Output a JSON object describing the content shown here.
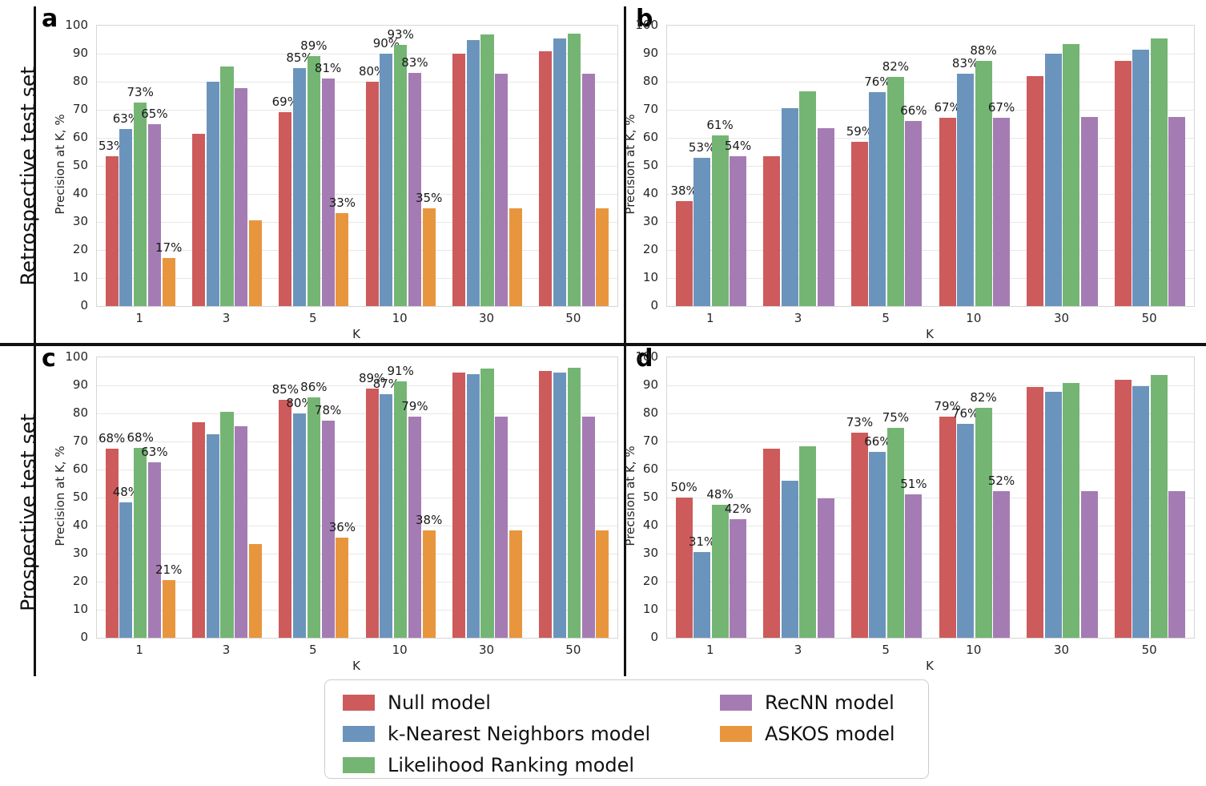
{
  "figure": {
    "row_titles": [
      "Retrospective test set",
      "Prospective test set"
    ],
    "legend": {
      "items": [
        {
          "label": "Null model",
          "color": "#cd5b5b"
        },
        {
          "label": "k-Nearest Neighbors model",
          "color": "#6b94bd"
        },
        {
          "label": "Likelihood Ranking model",
          "color": "#74b573"
        },
        {
          "label": "RecNN model",
          "color": "#a47cb3"
        },
        {
          "label": "ASKOS model",
          "color": "#e8963d"
        }
      ]
    },
    "colors": {
      "null_model": "#cd5b5b",
      "knn_model": "#6b94bd",
      "likelihood_model": "#74b573",
      "recnn_model": "#a47cb3",
      "askos_model": "#e8963d",
      "gridline": "#e7e7e7",
      "divider": "#111111"
    }
  },
  "chart_data": [
    {
      "type": "bar",
      "panel": "a",
      "row_title": "Retrospective test set",
      "categories": [
        "1",
        "3",
        "5",
        "10",
        "30",
        "50"
      ],
      "xlabel": "K",
      "ylabel": "Precision at K, %",
      "ylim": [
        0,
        100
      ],
      "ytick_step": 10,
      "grid": true,
      "series": [
        {
          "name": "Null model",
          "color": "#cd5b5b",
          "values": [
            53.3,
            61.3,
            69.2,
            80.0,
            90.0,
            90.8
          ],
          "labels": [
            "53%",
            "",
            "69%",
            "80%",
            "",
            ""
          ]
        },
        {
          "name": "k-Nearest Neighbors model",
          "color": "#6b94bd",
          "values": [
            63.1,
            80.0,
            85.0,
            90.0,
            95.0,
            95.3
          ],
          "labels": [
            "63%",
            "",
            "85%",
            "90%",
            "",
            ""
          ]
        },
        {
          "name": "Likelihood Ranking model",
          "color": "#74b573",
          "values": [
            72.6,
            85.5,
            89.2,
            93.2,
            97.0,
            97.2
          ],
          "labels": [
            "73%",
            "",
            "89%",
            "93%",
            "",
            ""
          ]
        },
        {
          "name": "RecNN model",
          "color": "#a47cb3",
          "values": [
            64.8,
            77.8,
            81.2,
            83.2,
            83.0,
            83.0
          ],
          "labels": [
            "65%",
            "",
            "81%",
            "83%",
            "",
            ""
          ]
        },
        {
          "name": "ASKOS model",
          "color": "#e8963d",
          "values": [
            17.2,
            30.5,
            33.2,
            35.0,
            35.0,
            35.0
          ],
          "labels": [
            "17%",
            "",
            "33%",
            "35%",
            "",
            ""
          ]
        }
      ]
    },
    {
      "type": "bar",
      "panel": "b",
      "row_title": "Retrospective test set",
      "categories": [
        "1",
        "3",
        "5",
        "10",
        "30",
        "50"
      ],
      "xlabel": "K",
      "ylabel": "Precision at K, %",
      "ylim": [
        0,
        100
      ],
      "ytick_step": 10,
      "grid": true,
      "series": [
        {
          "name": "Null model",
          "color": "#cd5b5b",
          "values": [
            37.5,
            53.5,
            58.5,
            67.2,
            82.0,
            87.5
          ],
          "labels": [
            "38%",
            "",
            "59%",
            "67%",
            "",
            ""
          ]
        },
        {
          "name": "k-Nearest Neighbors model",
          "color": "#6b94bd",
          "values": [
            53.0,
            70.5,
            76.3,
            82.8,
            90.0,
            91.5
          ],
          "labels": [
            "53%",
            "",
            "76%",
            "83%",
            "",
            ""
          ]
        },
        {
          "name": "Likelihood Ranking model",
          "color": "#74b573",
          "values": [
            61.0,
            76.5,
            81.8,
            87.5,
            93.5,
            95.5
          ],
          "labels": [
            "61%",
            "",
            "82%",
            "88%",
            "",
            ""
          ]
        },
        {
          "name": "RecNN model",
          "color": "#a47cb3",
          "values": [
            53.5,
            63.5,
            66.0,
            67.2,
            67.5,
            67.5
          ],
          "labels": [
            "54%",
            "",
            "66%",
            "67%",
            "",
            ""
          ]
        }
      ]
    },
    {
      "type": "bar",
      "panel": "c",
      "row_title": "Prospective test set",
      "categories": [
        "1",
        "3",
        "5",
        "10",
        "30",
        "50"
      ],
      "xlabel": "K",
      "ylabel": "Precision at K, %",
      "ylim": [
        0,
        100
      ],
      "ytick_step": 10,
      "grid": true,
      "series": [
        {
          "name": "Null model",
          "color": "#cd5b5b",
          "values": [
            67.5,
            77.0,
            85.0,
            89.0,
            94.5,
            95.2
          ],
          "labels": [
            "68%",
            "",
            "85%",
            "89%",
            "",
            ""
          ]
        },
        {
          "name": "k-Nearest Neighbors model",
          "color": "#6b94bd",
          "values": [
            48.2,
            72.5,
            80.0,
            87.0,
            94.0,
            94.7
          ],
          "labels": [
            "48%",
            "",
            "80%",
            "87%",
            "",
            ""
          ]
        },
        {
          "name": "Likelihood Ranking model",
          "color": "#74b573",
          "values": [
            67.8,
            80.7,
            85.8,
            91.3,
            96.0,
            96.2
          ],
          "labels": [
            "68%",
            "",
            "86%",
            "91%",
            "",
            ""
          ]
        },
        {
          "name": "RecNN model",
          "color": "#a47cb3",
          "values": [
            62.7,
            75.3,
            77.5,
            79.0,
            79.0,
            79.0
          ],
          "labels": [
            "63%",
            "",
            "78%",
            "79%",
            "",
            ""
          ]
        },
        {
          "name": "ASKOS model",
          "color": "#e8963d",
          "values": [
            20.7,
            33.5,
            35.8,
            38.2,
            38.2,
            38.2
          ],
          "labels": [
            "21%",
            "",
            "36%",
            "38%",
            "",
            ""
          ]
        }
      ]
    },
    {
      "type": "bar",
      "panel": "d",
      "row_title": "Prospective test set",
      "categories": [
        "1",
        "3",
        "5",
        "10",
        "30",
        "50"
      ],
      "xlabel": "K",
      "ylabel": "Precision at K, %",
      "ylim": [
        0,
        100
      ],
      "ytick_step": 10,
      "grid": true,
      "series": [
        {
          "name": "Null model",
          "color": "#cd5b5b",
          "values": [
            50.0,
            67.5,
            73.2,
            78.8,
            89.5,
            92.0
          ],
          "labels": [
            "50%",
            "",
            "73%",
            "79%",
            "",
            ""
          ]
        },
        {
          "name": "k-Nearest Neighbors model",
          "color": "#6b94bd",
          "values": [
            30.5,
            56.0,
            66.3,
            76.2,
            87.7,
            89.7
          ],
          "labels": [
            "31%",
            "",
            "66%",
            "76%",
            "",
            ""
          ]
        },
        {
          "name": "Likelihood Ranking model",
          "color": "#74b573",
          "values": [
            47.5,
            68.2,
            74.8,
            82.0,
            90.8,
            93.7
          ],
          "labels": [
            "48%",
            "",
            "75%",
            "82%",
            "",
            ""
          ]
        },
        {
          "name": "RecNN model",
          "color": "#a47cb3",
          "values": [
            42.3,
            49.8,
            51.2,
            52.2,
            52.3,
            52.3
          ],
          "labels": [
            "42%",
            "",
            "51%",
            "52%",
            "",
            ""
          ]
        }
      ]
    }
  ]
}
